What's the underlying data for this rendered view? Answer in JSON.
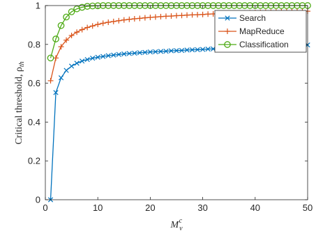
{
  "colors": {
    "search": "#0072BD",
    "mapreduce": "#D95319",
    "classification": "#4DAA14",
    "axis": "#262626",
    "background": "#ffffff"
  },
  "chart_data": {
    "type": "line",
    "title": "",
    "xlabel": "M_v^c",
    "xlabel_main": "M",
    "xlabel_sub": "v",
    "xlabel_sup": "c",
    "ylabel": "Critical threshold, ρ_th",
    "ylabel_main": "Critical threshold, ρ",
    "ylabel_sub": "th",
    "xlim": [
      0,
      50
    ],
    "ylim": [
      0,
      1
    ],
    "xticks": [
      0,
      10,
      20,
      30,
      40,
      50
    ],
    "yticks": [
      0,
      0.2,
      0.4,
      0.6,
      0.8,
      1
    ],
    "xtick_labels": [
      "0",
      "10",
      "20",
      "30",
      "40",
      "50"
    ],
    "ytick_labels": [
      "0",
      "0.2",
      "0.4",
      "0.6",
      "0.8",
      "1"
    ],
    "grid": false,
    "legend_position": "top-right",
    "x": [
      1,
      2,
      3,
      4,
      5,
      6,
      7,
      8,
      9,
      10,
      11,
      12,
      13,
      14,
      15,
      16,
      17,
      18,
      19,
      20,
      21,
      22,
      23,
      24,
      25,
      26,
      27,
      28,
      29,
      30,
      31,
      32,
      33,
      34,
      35,
      36,
      37,
      38,
      39,
      40,
      41,
      42,
      43,
      44,
      45,
      46,
      47,
      48,
      49,
      50
    ],
    "series": [
      {
        "name": "Search",
        "marker": "x",
        "color_key": "search",
        "values": [
          0.0,
          0.552,
          0.628,
          0.666,
          0.688,
          0.703,
          0.714,
          0.722,
          0.729,
          0.734,
          0.738,
          0.742,
          0.745,
          0.748,
          0.751,
          0.753,
          0.755,
          0.757,
          0.759,
          0.761,
          0.762,
          0.764,
          0.765,
          0.767,
          0.768,
          0.769,
          0.771,
          0.772,
          0.773,
          0.774,
          0.776,
          0.777,
          0.778,
          0.779,
          0.78,
          0.781,
          0.782,
          0.783,
          0.784,
          0.786,
          0.787,
          0.788,
          0.789,
          0.79,
          0.791,
          0.792,
          0.793,
          0.794,
          0.795,
          0.797
        ]
      },
      {
        "name": "MapReduce",
        "marker": "+",
        "color_key": "mapreduce",
        "values": [
          0.613,
          0.73,
          0.788,
          0.822,
          0.846,
          0.863,
          0.876,
          0.887,
          0.895,
          0.903,
          0.909,
          0.914,
          0.918,
          0.922,
          0.926,
          0.929,
          0.932,
          0.934,
          0.937,
          0.939,
          0.941,
          0.943,
          0.945,
          0.946,
          0.948,
          0.949,
          0.951,
          0.952,
          0.953,
          0.954,
          0.956,
          0.957,
          0.958,
          0.959,
          0.96,
          0.961,
          0.961,
          0.962,
          0.963,
          0.964,
          0.965,
          0.966,
          0.966,
          0.967,
          0.968,
          0.969,
          0.969,
          0.97,
          0.971,
          0.971
        ]
      },
      {
        "name": "Classification",
        "marker": "o",
        "color_key": "classification",
        "values": [
          0.73,
          0.828,
          0.897,
          0.941,
          0.968,
          0.983,
          0.991,
          0.996,
          0.998,
          0.999,
          1.0,
          1.0,
          1.0,
          1.0,
          1.0,
          1.0,
          1.0,
          1.0,
          1.0,
          1.0,
          1.0,
          1.0,
          1.0,
          1.0,
          1.0,
          1.0,
          1.0,
          1.0,
          1.0,
          1.0,
          1.0,
          1.0,
          1.0,
          1.0,
          1.0,
          1.0,
          1.0,
          1.0,
          1.0,
          1.0,
          1.0,
          1.0,
          1.0,
          1.0,
          1.0,
          1.0,
          1.0,
          1.0,
          1.0,
          1.0
        ]
      }
    ]
  }
}
